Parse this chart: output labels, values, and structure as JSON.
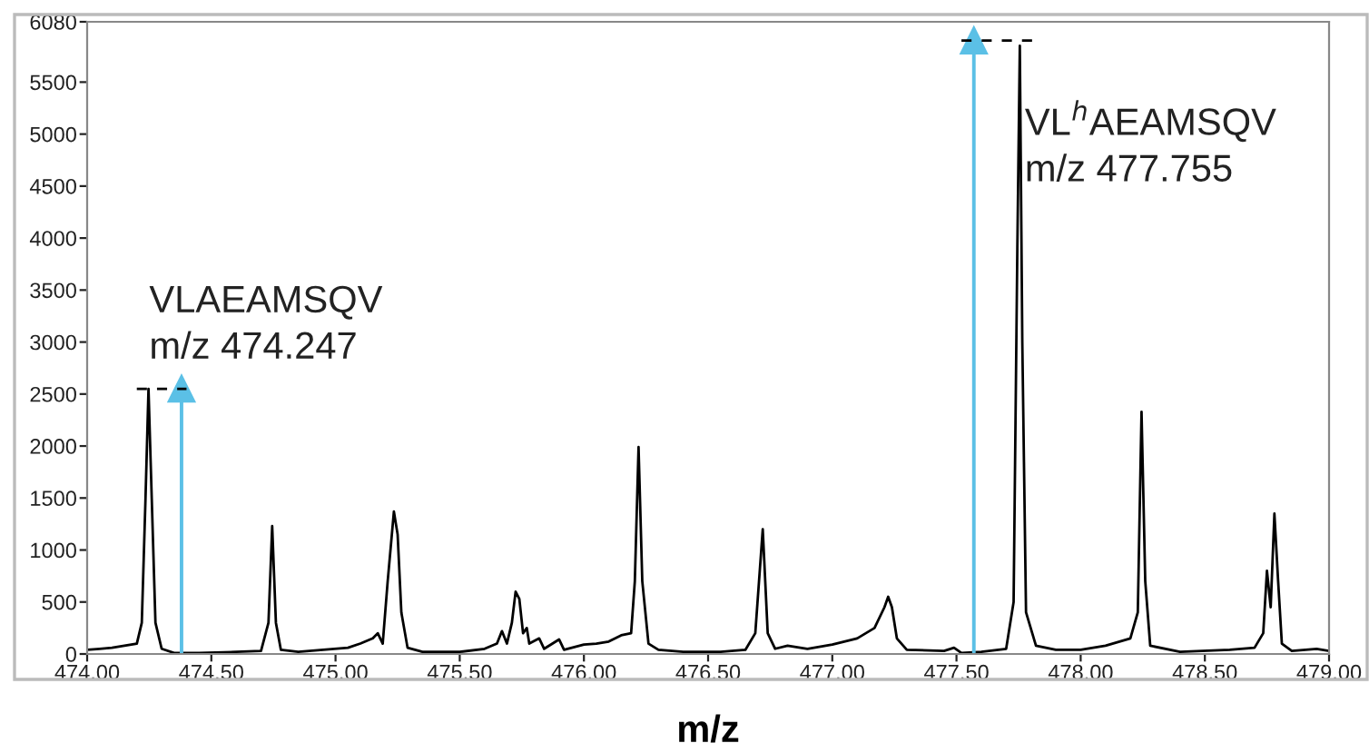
{
  "chart_data": {
    "type": "line",
    "xlabel": "m/z",
    "xlim": [
      474.0,
      479.0
    ],
    "ylim": [
      0,
      6080
    ],
    "xticks": [
      {
        "value": 474.0,
        "label": "474.00"
      },
      {
        "value": 474.5,
        "label": "474.50"
      },
      {
        "value": 475.0,
        "label": "475.00"
      },
      {
        "value": 475.5,
        "label": "475.50"
      },
      {
        "value": 476.0,
        "label": "476.00"
      },
      {
        "value": 476.5,
        "label": "476.50"
      },
      {
        "value": 477.0,
        "label": "477.00"
      },
      {
        "value": 477.5,
        "label": "477.50"
      },
      {
        "value": 478.0,
        "label": "478.00"
      },
      {
        "value": 478.5,
        "label": "478.50"
      },
      {
        "value": 479.0,
        "label": "479.00"
      }
    ],
    "yticks": [
      0,
      500,
      1000,
      1500,
      2000,
      2500,
      3000,
      3500,
      4000,
      4500,
      5000,
      5500,
      6080
    ],
    "grid": false,
    "legend": false,
    "series": [
      {
        "color": "#000000",
        "x": [
          474.0,
          474.05,
          474.1,
          474.15,
          474.2,
          474.22,
          474.235,
          474.247,
          474.26,
          474.275,
          474.3,
          474.35,
          474.45,
          474.6,
          474.7,
          474.73,
          474.745,
          474.76,
          474.78,
          474.85,
          474.95,
          475.05,
          475.1,
          475.15,
          475.17,
          475.19,
          475.21,
          475.235,
          475.25,
          475.265,
          475.29,
          475.35,
          475.5,
          475.6,
          475.65,
          475.67,
          475.69,
          475.71,
          475.725,
          475.74,
          475.755,
          475.77,
          475.78,
          475.82,
          475.84,
          475.9,
          475.92,
          476.0,
          476.05,
          476.1,
          476.15,
          476.19,
          476.205,
          476.22,
          476.235,
          476.26,
          476.3,
          476.4,
          476.55,
          476.65,
          476.69,
          476.72,
          476.74,
          476.77,
          476.82,
          476.9,
          477.0,
          477.1,
          477.17,
          477.21,
          477.225,
          477.24,
          477.26,
          477.3,
          477.45,
          477.49,
          477.52,
          477.6,
          477.7,
          477.73,
          477.745,
          477.755,
          477.765,
          477.78,
          477.82,
          477.9,
          478.0,
          478.1,
          478.2,
          478.23,
          478.245,
          478.26,
          478.28,
          478.4,
          478.6,
          478.7,
          478.735,
          478.75,
          478.765,
          478.78,
          478.795,
          478.81,
          478.85,
          478.95,
          479.0
        ],
        "values": [
          40,
          50,
          60,
          80,
          100,
          300,
          1500,
          2550,
          1500,
          300,
          50,
          10,
          10,
          20,
          30,
          300,
          1230,
          300,
          40,
          20,
          40,
          60,
          100,
          150,
          200,
          100,
          700,
          1370,
          1150,
          400,
          60,
          20,
          20,
          50,
          100,
          220,
          100,
          300,
          600,
          530,
          200,
          250,
          100,
          150,
          50,
          140,
          40,
          90,
          100,
          120,
          180,
          200,
          700,
          1990,
          700,
          100,
          40,
          20,
          20,
          40,
          200,
          1200,
          200,
          50,
          80,
          50,
          90,
          150,
          250,
          450,
          550,
          450,
          150,
          40,
          30,
          60,
          10,
          20,
          50,
          500,
          3900,
          5850,
          3000,
          400,
          80,
          40,
          40,
          80,
          150,
          400,
          2330,
          700,
          80,
          20,
          40,
          60,
          200,
          800,
          450,
          1350,
          700,
          100,
          30,
          50,
          30
        ]
      },
      {
        "color": "#5bc0e6",
        "x": [
          474.38,
          474.38
        ],
        "values": [
          0,
          2550
        ],
        "marker": "triangle"
      },
      {
        "color": "#5bc0e6",
        "x": [
          477.57,
          477.57
        ],
        "values": [
          0,
          5900
        ],
        "marker": "triangle"
      },
      {
        "color": "#000000",
        "x": [
          474.2,
          474.4
        ],
        "values": [
          2550,
          2550
        ],
        "line_style": "dashed"
      },
      {
        "color": "#000000",
        "x": [
          477.52,
          477.82
        ],
        "values": [
          5900,
          5900
        ],
        "line_style": "dashed"
      }
    ],
    "annotations": [
      "VLAEAMSQV\nm/z 474.247",
      "VL$^{h}$AEAMSQV\nm/z 477.755"
    ]
  }
}
